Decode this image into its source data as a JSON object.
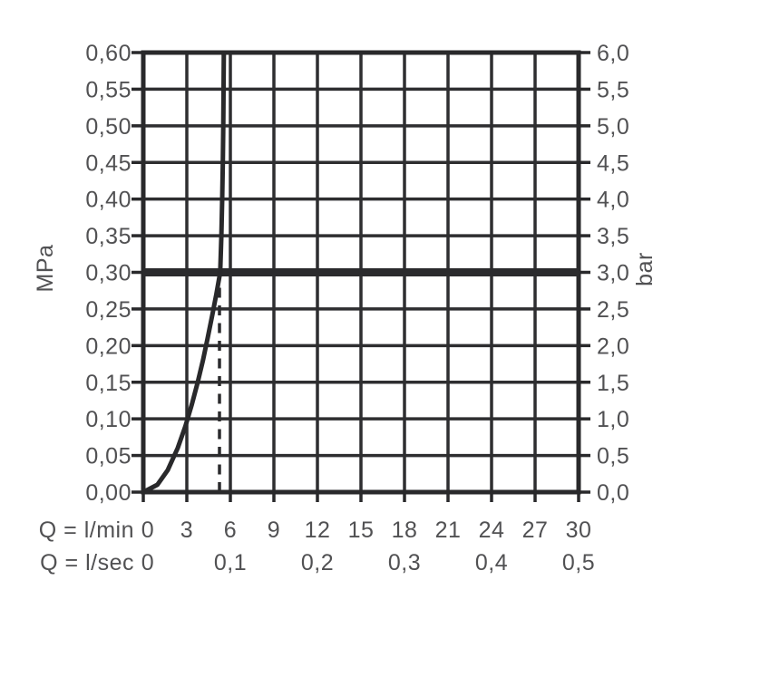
{
  "chart_data": {
    "type": "line",
    "title": "",
    "description": "Flow rate vs. pressure diagram",
    "x_axis": {
      "label_lmin": "Q = l/min",
      "label_lsec": "Q = l/sec",
      "range_lmin": [
        0,
        30
      ],
      "lmin_ticks": [
        {
          "v": 0,
          "label": "0"
        },
        {
          "v": 3,
          "label": "3"
        },
        {
          "v": 6,
          "label": "6"
        },
        {
          "v": 9,
          "label": "9"
        },
        {
          "v": 12,
          "label": "12"
        },
        {
          "v": 15,
          "label": "15"
        },
        {
          "v": 18,
          "label": "18"
        },
        {
          "v": 21,
          "label": "21"
        },
        {
          "v": 24,
          "label": "24"
        },
        {
          "v": 27,
          "label": "27"
        },
        {
          "v": 30,
          "label": "30"
        }
      ],
      "lsec_ticks": [
        {
          "v": 0,
          "label": "0"
        },
        {
          "v": 6,
          "label": "0,1"
        },
        {
          "v": 12,
          "label": "0,2"
        },
        {
          "v": 18,
          "label": "0,3"
        },
        {
          "v": 24,
          "label": "0,4"
        },
        {
          "v": 30,
          "label": "0,5"
        }
      ]
    },
    "y_axis_left": {
      "label": "MPa",
      "range": [
        0,
        0.6
      ],
      "grid": true,
      "ticks": [
        {
          "v": 0.6,
          "label": "0,60"
        },
        {
          "v": 0.55,
          "label": "0,55"
        },
        {
          "v": 0.5,
          "label": "0,50"
        },
        {
          "v": 0.45,
          "label": "0,45"
        },
        {
          "v": 0.4,
          "label": "0,40"
        },
        {
          "v": 0.35,
          "label": "0,35"
        },
        {
          "v": 0.3,
          "label": "0,30"
        },
        {
          "v": 0.25,
          "label": "0,25"
        },
        {
          "v": 0.2,
          "label": "0,20"
        },
        {
          "v": 0.15,
          "label": "0,15"
        },
        {
          "v": 0.1,
          "label": "0,10"
        },
        {
          "v": 0.05,
          "label": "0,05"
        },
        {
          "v": 0.0,
          "label": "0,00"
        }
      ]
    },
    "y_axis_right": {
      "label": "bar",
      "range": [
        0,
        6
      ],
      "ticks": [
        {
          "v": 6.0,
          "label": "6,0"
        },
        {
          "v": 5.5,
          "label": "5,5"
        },
        {
          "v": 5.0,
          "label": "5,0"
        },
        {
          "v": 4.5,
          "label": "4,5"
        },
        {
          "v": 4.0,
          "label": "4,0"
        },
        {
          "v": 3.5,
          "label": "3,5"
        },
        {
          "v": 3.0,
          "label": "3,0"
        },
        {
          "v": 2.5,
          "label": "2,5"
        },
        {
          "v": 2.0,
          "label": "2,0"
        },
        {
          "v": 1.5,
          "label": "1,5"
        },
        {
          "v": 1.0,
          "label": "1,0"
        },
        {
          "v": 0.5,
          "label": "0,5"
        },
        {
          "v": 0.0,
          "label": "0,0"
        }
      ]
    },
    "series": [
      {
        "name": "flow-curve",
        "points_lmin_mpa": [
          [
            0,
            0
          ],
          [
            0.97,
            0.01
          ],
          [
            1.68,
            0.03
          ],
          [
            2.37,
            0.06
          ],
          [
            2.9,
            0.09
          ],
          [
            3.35,
            0.12
          ],
          [
            3.75,
            0.15
          ],
          [
            4.11,
            0.18
          ],
          [
            4.43,
            0.21
          ],
          [
            4.74,
            0.24
          ],
          [
            5.03,
            0.27
          ],
          [
            5.3,
            0.3
          ],
          [
            5.38,
            0.35
          ],
          [
            5.44,
            0.4
          ],
          [
            5.48,
            0.45
          ],
          [
            5.51,
            0.5
          ],
          [
            5.53,
            0.55
          ],
          [
            5.55,
            0.6
          ]
        ]
      }
    ],
    "reference_line": {
      "mpa": 0.3,
      "bar": 3.0
    },
    "dashed_guide": {
      "lmin": 5.25,
      "from_mpa": 0,
      "to_mpa": 0.285
    },
    "colors": {
      "grid": "#2e2e30",
      "frame": "#29292b",
      "curve": "#29292b",
      "reference": "#2b2b2d",
      "dashed": "#2b2b2d",
      "label": "#515153",
      "background": "#ffffff"
    }
  }
}
